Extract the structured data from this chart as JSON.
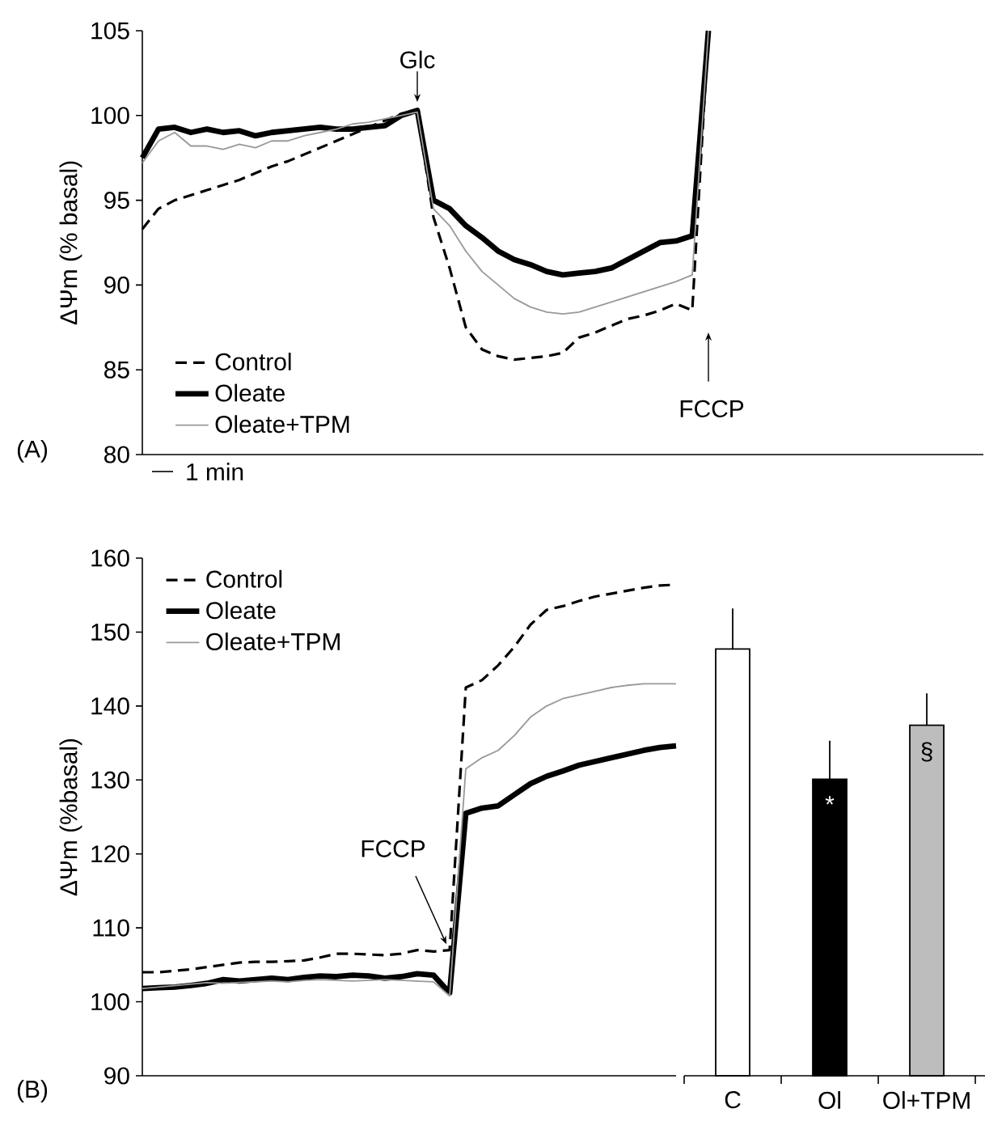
{
  "chart_data": [
    {
      "type": "line",
      "ylabel": "ΔΨm (% basal)",
      "categories": [
        null,
        null,
        null,
        null,
        null,
        null,
        null,
        null,
        null,
        null,
        null,
        null,
        null,
        null,
        null,
        null,
        null,
        null,
        null,
        null,
        null,
        null,
        null,
        null,
        null,
        null,
        null,
        null,
        null,
        null,
        null,
        null,
        null,
        null,
        null,
        null,
        null,
        null,
        null,
        null,
        null,
        null,
        null,
        null,
        null,
        null,
        null,
        null,
        null,
        null,
        null,
        null,
        null
      ],
      "series": [
        {
          "name": "Control",
          "color": "#000000",
          "line_style": "dashed",
          "values": [
            93.3,
            94.5,
            95.0,
            95.3,
            95.6,
            95.9,
            96.2,
            96.6,
            97.0,
            97.3,
            97.7,
            98.1,
            98.5,
            98.9,
            99.3,
            99.7,
            100.1,
            100.3,
            94.0,
            91.0,
            87.5,
            86.2,
            85.8,
            85.6,
            85.7,
            85.8,
            86.0,
            86.9,
            87.2,
            87.6,
            88.0,
            88.2,
            88.5,
            88.9,
            88.5,
            105,
            null,
            null,
            null,
            null,
            null,
            null,
            null,
            null,
            null,
            null,
            null,
            null,
            null,
            null,
            null,
            null,
            null
          ]
        },
        {
          "name": "Oleate",
          "color": "#000000",
          "line_style": "solid",
          "values": [
            97.5,
            99.2,
            99.3,
            99.0,
            99.2,
            99.0,
            99.1,
            98.8,
            99.0,
            99.1,
            99.2,
            99.3,
            99.2,
            99.2,
            99.3,
            99.4,
            100.0,
            100.3,
            95.0,
            94.5,
            93.5,
            92.8,
            92.0,
            91.5,
            91.2,
            90.8,
            90.6,
            90.7,
            90.8,
            91.0,
            91.5,
            92.0,
            92.5,
            92.6,
            92.9,
            105,
            null,
            null,
            null,
            null,
            null,
            null,
            null,
            null,
            null,
            null,
            null,
            null,
            null,
            null,
            null,
            null,
            null
          ]
        },
        {
          "name": "Oleate+TPM",
          "color": "#999999",
          "line_style": "solid",
          "values": [
            97.2,
            98.5,
            99.0,
            98.2,
            98.2,
            98.0,
            98.3,
            98.1,
            98.5,
            98.5,
            98.8,
            99.0,
            99.2,
            99.5,
            99.6,
            99.8,
            100.0,
            100.2,
            94.5,
            93.5,
            92.0,
            90.8,
            90.0,
            89.2,
            88.7,
            88.4,
            88.3,
            88.4,
            88.7,
            89.0,
            89.3,
            89.6,
            89.9,
            90.2,
            90.6,
            105,
            null,
            null,
            null,
            null,
            null,
            null,
            null,
            null,
            null,
            null,
            null,
            null,
            null,
            null,
            null,
            null,
            null
          ]
        }
      ],
      "ylim": [
        80,
        105
      ],
      "yticks": [
        80,
        85,
        90,
        95,
        100,
        105
      ],
      "legend": "bottom left",
      "tick_labels": "y",
      "annotations": [
        "Glc",
        "FCCP",
        "(A)",
        "1 min"
      ]
    },
    {
      "type": "line",
      "ylabel": "ΔΨm  (%basal)",
      "categories": [
        null,
        null,
        null,
        null,
        null,
        null,
        null,
        null,
        null,
        null,
        null,
        null,
        null,
        null,
        null,
        null,
        null,
        null,
        null,
        null,
        null,
        null,
        null,
        null,
        null,
        null,
        null,
        null,
        null,
        null,
        null,
        null,
        null,
        null
      ],
      "series": [
        {
          "name": "Control",
          "color": "#000000",
          "line_style": "dashed",
          "values": [
            104.0,
            104.0,
            104.2,
            104.4,
            104.7,
            105.0,
            105.3,
            105.4,
            105.4,
            105.5,
            105.6,
            106.0,
            106.5,
            106.5,
            106.4,
            106.3,
            106.5,
            107.0,
            106.8,
            107.0,
            142.5,
            143.5,
            145.5,
            148.0,
            151.0,
            153.0,
            153.5,
            154.2,
            154.8,
            155.2,
            155.6,
            156.0,
            156.3,
            156.4
          ]
        },
        {
          "name": "Oleate",
          "color": "#000000",
          "line_style": "solid",
          "values": [
            101.8,
            101.9,
            102.0,
            102.2,
            102.5,
            103.0,
            102.8,
            103.0,
            103.2,
            103.0,
            103.3,
            103.5,
            103.4,
            103.6,
            103.5,
            103.2,
            103.4,
            103.8,
            103.6,
            101.2,
            125.5,
            126.2,
            126.5,
            128.0,
            129.5,
            130.5,
            131.2,
            132.0,
            132.5,
            133.0,
            133.5,
            134.0,
            134.4,
            134.6
          ]
        },
        {
          "name": "Oleate+TPM",
          "color": "#999999",
          "line_style": "solid",
          "values": [
            101.8,
            102.0,
            102.2,
            102.4,
            102.6,
            102.5,
            102.6,
            102.7,
            102.8,
            102.7,
            102.9,
            103.0,
            102.9,
            102.8,
            102.9,
            103.0,
            102.9,
            102.8,
            102.7,
            100.8,
            131.5,
            133.0,
            134.0,
            136.0,
            138.5,
            140.0,
            141.0,
            141.5,
            142.0,
            142.5,
            142.8,
            143.0,
            143.0,
            143.0
          ]
        }
      ],
      "ylim": [
        90,
        160
      ],
      "yticks": [
        90,
        100,
        110,
        120,
        130,
        140,
        150,
        160
      ],
      "legend": "top left",
      "tick_labels": "y",
      "annotations": [
        "FCCP",
        "(B)"
      ]
    },
    {
      "type": "bar",
      "categories": [
        "C",
        "Ol",
        "Ol+TPM"
      ],
      "values": [
        147.7,
        130.1,
        137.4
      ],
      "colors": [
        "#ffffff",
        "#000000",
        "#bdbdbd"
      ],
      "errors": [
        [
          147.7,
          153.2
        ],
        [
          130.1,
          135.3
        ],
        [
          137.4,
          141.7
        ]
      ],
      "ylim": [
        90,
        160
      ],
      "tick_labels": "x",
      "annotations": [
        "*",
        "§"
      ]
    }
  ]
}
